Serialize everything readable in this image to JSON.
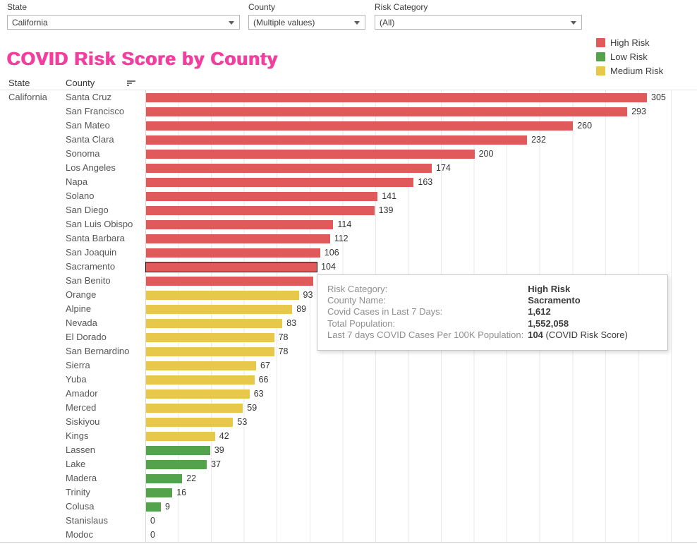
{
  "filters": {
    "state": {
      "label": "State",
      "value": "California"
    },
    "county": {
      "label": "County",
      "value": "(Multiple values)"
    },
    "risk_category": {
      "label": "Risk Category",
      "value": "(All)"
    }
  },
  "legend": {
    "items": [
      {
        "label": "High Risk",
        "color": "#e0595b"
      },
      {
        "label": "Low Risk",
        "color": "#55a24c"
      },
      {
        "label": "Medium Risk",
        "color": "#e8c84a"
      }
    ]
  },
  "title": "COVID Risk Score by County",
  "title_color": "#f23f9f",
  "table_headers": {
    "state": "State",
    "county": "County"
  },
  "state_value": "California",
  "chart_data": {
    "type": "bar",
    "orientation": "horizontal",
    "title": "COVID Risk Score by County",
    "xlabel": "",
    "ylabel": "County",
    "xlim": [
      0,
      335
    ],
    "gridline_interval": 20,
    "grid": true,
    "legend_position": "top-right",
    "value_label_meaning": "Last 7 days COVID Cases Per 100K Population (COVID Risk Score)",
    "categories": [
      "Santa Cruz",
      "San Francisco",
      "San Mateo",
      "Santa Clara",
      "Sonoma",
      "Los Angeles",
      "Napa",
      "Solano",
      "San Diego",
      "San Luis Obispo",
      "Santa Barbara",
      "San Joaquin",
      "Sacramento",
      "San Benito",
      "Orange",
      "Alpine",
      "Nevada",
      "El Dorado",
      "San Bernardino",
      "Sierra",
      "Yuba",
      "Amador",
      "Merced",
      "Siskiyou",
      "Kings",
      "Lassen",
      "Lake",
      "Madera",
      "Trinity",
      "Colusa",
      "Stanislaus",
      "Modoc"
    ],
    "values": [
      305,
      293,
      260,
      232,
      200,
      174,
      163,
      141,
      139,
      114,
      112,
      106,
      104,
      102,
      93,
      89,
      83,
      78,
      78,
      67,
      66,
      63,
      59,
      53,
      42,
      39,
      37,
      22,
      16,
      9,
      0,
      0
    ],
    "risk_levels": [
      "high",
      "high",
      "high",
      "high",
      "high",
      "high",
      "high",
      "high",
      "high",
      "high",
      "high",
      "high",
      "high",
      "high",
      "medium",
      "medium",
      "medium",
      "medium",
      "medium",
      "medium",
      "medium",
      "medium",
      "medium",
      "medium",
      "medium",
      "low",
      "low",
      "low",
      "low",
      "low",
      "zero",
      "zero"
    ],
    "value_labels": [
      "305",
      "293",
      "260",
      "232",
      "200",
      "174",
      "163",
      "141",
      "139",
      "114",
      "112",
      "106",
      "104",
      "",
      "93",
      "89",
      "83",
      "78",
      "78",
      "67",
      "66",
      "63",
      "59",
      "53",
      "42",
      "39",
      "37",
      "22",
      "16",
      "9",
      "0",
      "0"
    ],
    "selected_category": "Sacramento",
    "colors": {
      "high": "#e0595b",
      "medium": "#e8c84a",
      "low": "#55a24c"
    }
  },
  "tooltip": {
    "rows": [
      {
        "label": "Risk Category:",
        "value": "High Risk",
        "suffix": ""
      },
      {
        "label": "County Name:",
        "value": "Sacramento",
        "suffix": ""
      },
      {
        "label": "Covid Cases in Last 7 Days:",
        "value": "1,612",
        "suffix": ""
      },
      {
        "label": "Total Population:",
        "value": "1,552,058",
        "suffix": ""
      },
      {
        "label": "Last 7 days COVID Cases Per 100K Population:",
        "value": "104",
        "suffix": " (COVID Risk Score)"
      }
    ]
  }
}
